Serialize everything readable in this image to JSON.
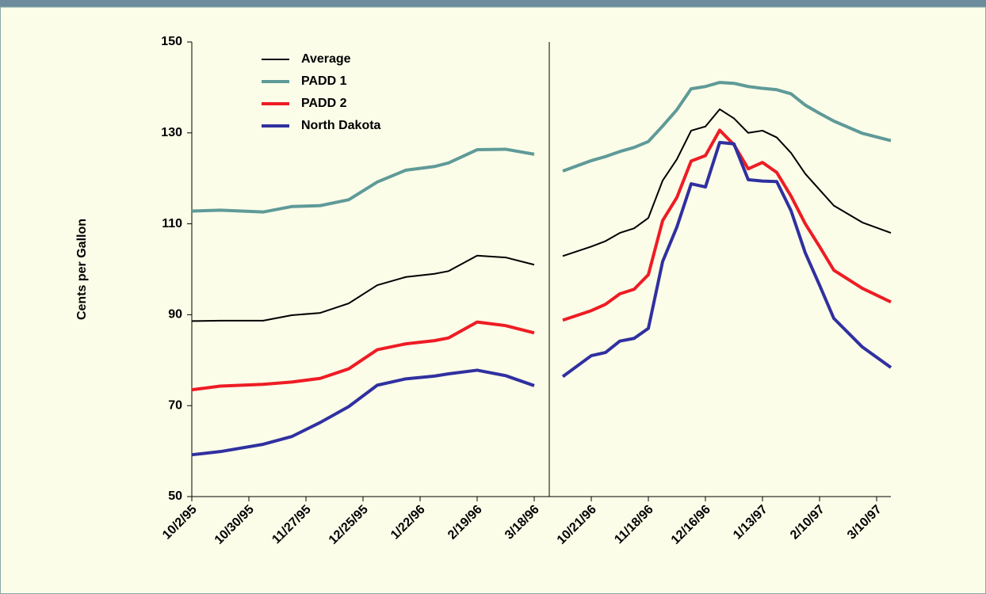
{
  "chart_data": {
    "type": "line",
    "y_label": "Cents per Gallon",
    "x": [
      0,
      2,
      5,
      7,
      9,
      11,
      13,
      15,
      17,
      18,
      20,
      22,
      24,
      25,
      26,
      28,
      29,
      30,
      31,
      32,
      33,
      34,
      35,
      36,
      37,
      38,
      39,
      40,
      41,
      42,
      43,
      44,
      45,
      47,
      49
    ],
    "xlim": [
      0,
      49
    ],
    "xticks": [
      {
        "value": 0,
        "label": "10/2/95"
      },
      {
        "value": 4,
        "label": "10/30/95"
      },
      {
        "value": 8,
        "label": "11/27/95"
      },
      {
        "value": 12,
        "label": "12/25/95"
      },
      {
        "value": 16,
        "label": "1/22/96"
      },
      {
        "value": 20,
        "label": "2/19/96"
      },
      {
        "value": 24,
        "label": "3/18/96"
      },
      {
        "value": 28,
        "label": "10/21/96"
      },
      {
        "value": 32,
        "label": "11/18/96"
      },
      {
        "value": 36,
        "label": "12/16/96"
      },
      {
        "value": 40,
        "label": "1/13/97"
      },
      {
        "value": 44,
        "label": "2/10/97"
      },
      {
        "value": 48,
        "label": "3/10/97"
      }
    ],
    "ylim": [
      50,
      150
    ],
    "yticks": [
      50,
      70,
      90,
      110,
      130,
      150
    ],
    "legend": "top-left",
    "series": [
      {
        "name": "Average",
        "color": "#000000",
        "width": 2,
        "values": [
          88.6,
          88.7,
          88.7,
          89.9,
          90.4,
          92.5,
          96.5,
          98.3,
          99.0,
          99.6,
          103.0,
          102.6,
          101.0,
          null,
          102.9,
          105.0,
          106.2,
          108.0,
          109.0,
          111.3,
          119.5,
          124.2,
          130.5,
          131.4,
          135.2,
          133.2,
          130.0,
          130.5,
          129.0,
          125.6,
          121.0,
          117.5,
          114.0,
          110.3,
          108.0
        ]
      },
      {
        "name": "PADD 1",
        "color": "#5f9a98",
        "width": 4,
        "values": [
          112.8,
          113.0,
          112.6,
          113.8,
          114.0,
          115.3,
          119.2,
          121.8,
          122.6,
          123.4,
          126.3,
          126.4,
          125.3,
          null,
          121.6,
          123.9,
          124.8,
          125.9,
          126.8,
          128.1,
          131.5,
          135.1,
          139.7,
          140.2,
          141.1,
          140.9,
          140.2,
          139.8,
          139.5,
          138.6,
          136.1,
          134.3,
          132.6,
          129.9,
          128.3
        ]
      },
      {
        "name": "PADD 2",
        "color": "#ee1c24",
        "width": 4,
        "values": [
          73.5,
          74.3,
          74.7,
          75.2,
          76.0,
          78.1,
          82.3,
          83.6,
          84.3,
          84.9,
          88.4,
          87.6,
          86.0,
          null,
          88.8,
          90.9,
          92.3,
          94.6,
          95.6,
          98.8,
          110.7,
          115.8,
          123.8,
          125.0,
          130.6,
          127.4,
          122.1,
          123.5,
          121.3,
          116.1,
          110.0,
          105.0,
          99.8,
          95.8,
          92.8
        ]
      },
      {
        "name": "North Dakota",
        "color": "#3030a0",
        "width": 4,
        "values": [
          59.2,
          59.9,
          61.5,
          63.2,
          66.3,
          69.8,
          74.5,
          75.9,
          76.5,
          77.0,
          77.8,
          76.6,
          74.4,
          null,
          76.4,
          81.0,
          81.7,
          84.2,
          84.8,
          87.0,
          101.7,
          109.3,
          118.8,
          118.1,
          127.9,
          127.6,
          119.7,
          119.4,
          119.3,
          112.9,
          103.6,
          96.5,
          89.2,
          82.9,
          78.4
        ]
      }
    ]
  }
}
